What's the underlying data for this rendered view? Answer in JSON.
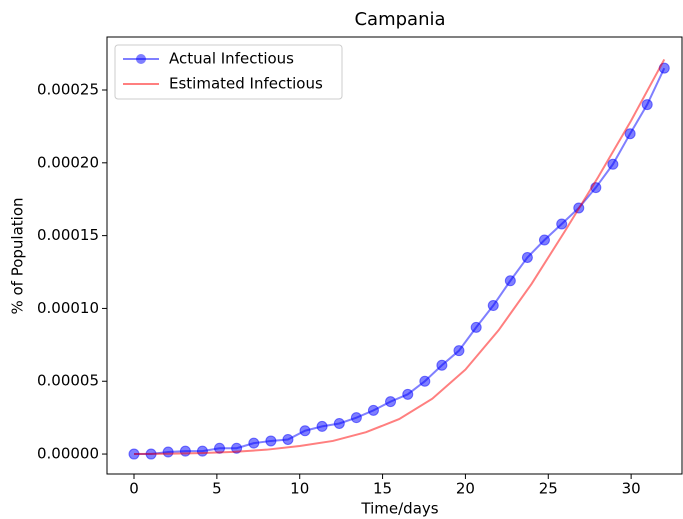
{
  "chart_data": {
    "type": "line",
    "title": "Campania",
    "xlabel": "Time/days",
    "ylabel": "% of Population",
    "legend": "upper left",
    "xlim": [
      -1.63,
      33.07
    ],
    "ylim": [
      -1.37e-05,
      0.0002864
    ],
    "xticks": [
      0,
      5,
      10,
      15,
      20,
      25,
      30
    ],
    "yticks": [
      {
        "value": 0,
        "label": "0.00000"
      },
      {
        "value": 5e-05,
        "label": "0.00005"
      },
      {
        "value": 0.0001,
        "label": "0.00010"
      },
      {
        "value": 0.00015,
        "label": "0.00015"
      },
      {
        "value": 0.0002,
        "label": "0.00020"
      },
      {
        "value": 0.00025,
        "label": "0.00025"
      }
    ],
    "series": [
      {
        "name": "Actual Infectious",
        "color": "#0000ff",
        "marker": "o",
        "x": [
          0,
          1.03,
          2.06,
          3.1,
          4.13,
          5.16,
          6.19,
          7.23,
          8.26,
          9.29,
          10.32,
          11.35,
          12.39,
          13.42,
          14.45,
          15.48,
          16.52,
          17.55,
          18.58,
          19.61,
          20.65,
          21.68,
          22.71,
          23.74,
          24.77,
          25.81,
          26.84,
          27.87,
          28.9,
          29.94,
          30.97,
          32
        ],
        "values": [
          0,
          0,
          1.4e-06,
          2e-06,
          2e-06,
          4e-06,
          4e-06,
          7.5e-06,
          9e-06,
          1e-05,
          1.6e-05,
          1.9e-05,
          2.1e-05,
          2.5e-05,
          3e-05,
          3.6e-05,
          4.1e-05,
          5e-05,
          6.1e-05,
          7.1e-05,
          8.7e-05,
          0.000102,
          0.000119,
          0.000135,
          0.000147,
          0.000158,
          0.000169,
          0.000183,
          0.000199,
          0.00022,
          0.00024,
          0.000265
        ]
      },
      {
        "name": "Estimated Infectious",
        "color": "#ff0000",
        "x": [
          0,
          2,
          4,
          6,
          8,
          10,
          12,
          14,
          16,
          18,
          20,
          22,
          24,
          26,
          28,
          30,
          32
        ],
        "values": [
          0,
          2e-07,
          6e-07,
          1.5e-06,
          3e-06,
          5.5e-06,
          9e-06,
          1.5e-05,
          2.4e-05,
          3.8e-05,
          5.8e-05,
          8.5e-05,
          0.000117,
          0.000153,
          0.00019,
          0.000229,
          0.000271
        ]
      }
    ]
  }
}
